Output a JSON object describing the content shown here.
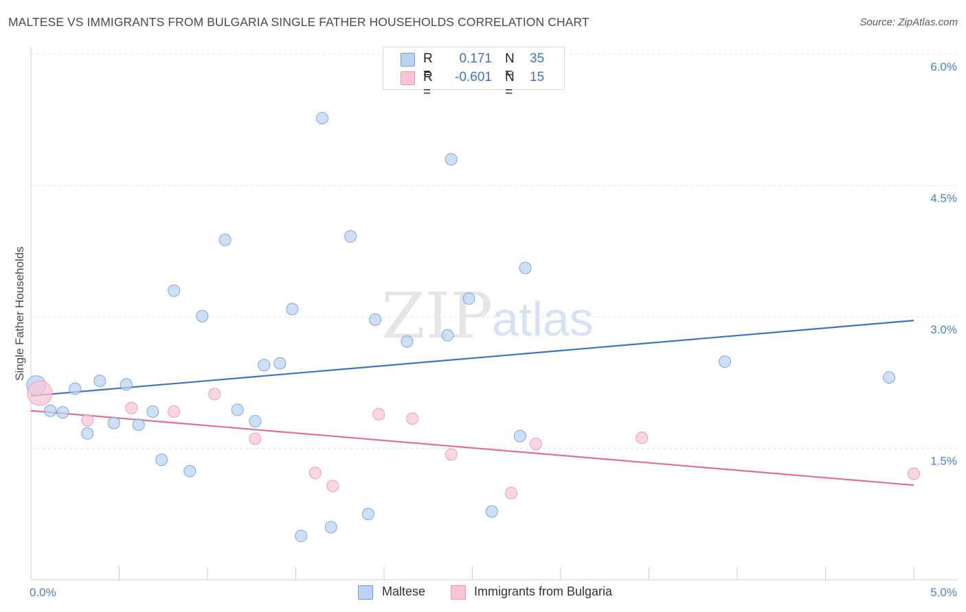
{
  "title": "MALTESE VS IMMIGRANTS FROM BULGARIA SINGLE FATHER HOUSEHOLDS CORRELATION CHART",
  "source": "Source: ZipAtlas.com",
  "colors": {
    "blue": "#3b73c9",
    "blue_fill": "#b9d3f3",
    "pink": "#e56c96",
    "pink_fill": "#f8c5d4",
    "tick_text": "#4a7fd4",
    "grid": "#dde0e4"
  },
  "legend": {
    "rows": [
      {
        "r_label": "R =",
        "r_value": "0.171",
        "n_label": "N =",
        "n_value": "35"
      },
      {
        "r_label": "R =",
        "r_value": "-0.601",
        "n_label": "N =",
        "n_value": "15"
      }
    ]
  },
  "watermark": {
    "zip": "ZIP",
    "atlas": "atlas"
  },
  "chart_data": {
    "type": "scatter",
    "ylabel": "Single Father Households",
    "xlabel": "",
    "xlim": [
      0,
      5.0
    ],
    "ylim": [
      0,
      6.0
    ],
    "x_ticks": [
      {
        "value": 0,
        "label": "0.0%"
      },
      {
        "value": 5.0,
        "label": "5.0%"
      }
    ],
    "y_ticks": [
      {
        "value": 1.5,
        "label": "1.5%"
      },
      {
        "value": 3.0,
        "label": "3.0%"
      },
      {
        "value": 4.5,
        "label": "4.5%"
      },
      {
        "value": 6.0,
        "label": "6.0%"
      }
    ],
    "grid": true,
    "legend_position": "bottom-center",
    "series": [
      {
        "name": "Maltese",
        "color": "#3b73c9",
        "points": [
          [
            0.03,
            2.22
          ],
          [
            0.11,
            1.93
          ],
          [
            0.18,
            1.91
          ],
          [
            0.25,
            2.18
          ],
          [
            0.32,
            1.67
          ],
          [
            0.39,
            2.27
          ],
          [
            0.47,
            1.79
          ],
          [
            0.54,
            2.23
          ],
          [
            0.61,
            1.77
          ],
          [
            0.69,
            1.92
          ],
          [
            0.74,
            1.37
          ],
          [
            0.81,
            3.3
          ],
          [
            0.9,
            1.24
          ],
          [
            0.97,
            3.01
          ],
          [
            1.1,
            3.88
          ],
          [
            1.17,
            1.94
          ],
          [
            1.27,
            1.81
          ],
          [
            1.32,
            2.45
          ],
          [
            1.41,
            2.47
          ],
          [
            1.48,
            3.09
          ],
          [
            1.53,
            0.5
          ],
          [
            1.65,
            5.27
          ],
          [
            1.7,
            0.6
          ],
          [
            1.81,
            3.92
          ],
          [
            1.91,
            0.75
          ],
          [
            1.95,
            2.97
          ],
          [
            2.13,
            2.72
          ],
          [
            2.36,
            2.79
          ],
          [
            2.38,
            4.8
          ],
          [
            2.48,
            3.21
          ],
          [
            2.61,
            0.78
          ],
          [
            2.77,
            1.64
          ],
          [
            2.8,
            3.56
          ],
          [
            3.93,
            2.49
          ],
          [
            4.86,
            2.31
          ]
        ],
        "trend": {
          "x": [
            0.0,
            5.0
          ],
          "y": [
            2.1,
            2.96
          ]
        }
      },
      {
        "name": "Immigrants from Bulgaria",
        "color": "#e56c96",
        "points": [
          [
            0.05,
            2.13
          ],
          [
            0.32,
            1.82
          ],
          [
            0.57,
            1.96
          ],
          [
            0.81,
            1.92
          ],
          [
            1.04,
            2.12
          ],
          [
            1.27,
            1.61
          ],
          [
            1.61,
            1.22
          ],
          [
            1.71,
            1.07
          ],
          [
            1.97,
            1.89
          ],
          [
            2.16,
            1.84
          ],
          [
            2.38,
            1.43
          ],
          [
            2.72,
            0.99
          ],
          [
            2.86,
            1.55
          ],
          [
            3.46,
            1.62
          ],
          [
            5.0,
            1.21
          ]
        ],
        "trend": {
          "x": [
            0.0,
            5.0
          ],
          "y": [
            1.93,
            1.08
          ]
        }
      }
    ]
  }
}
